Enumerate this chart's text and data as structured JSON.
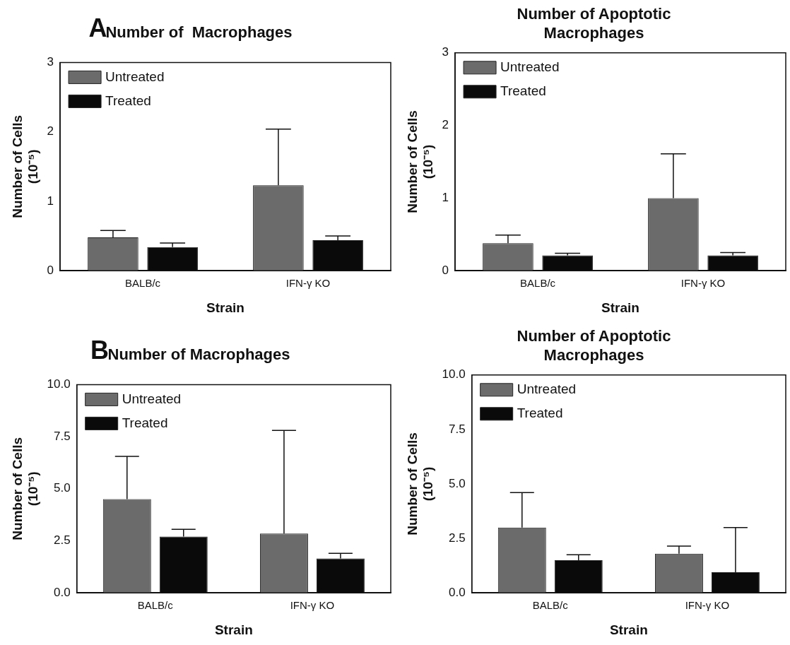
{
  "chart_data": [
    {
      "type": "bar",
      "title": "Number of  Macrophages",
      "annotations": [
        "A"
      ],
      "xlabel": "Strain",
      "ylabel": "Number of Cells (10⁻⁵)",
      "categories": [
        "BALB/c",
        "IFN-γ KO"
      ],
      "ylim": [
        0,
        3
      ],
      "yticks": [
        0,
        1,
        2,
        3
      ],
      "legend": "top left",
      "series": [
        {
          "name": "Untreated",
          "color": "#6b6b6b",
          "values": [
            0.48,
            1.23
          ],
          "errors": [
            [
              0.48,
              0.58
            ],
            [
              1.23,
              2.04
            ]
          ]
        },
        {
          "name": "Treated",
          "color": "#0a0a0a",
          "values": [
            0.34,
            0.44
          ],
          "errors": [
            [
              0.34,
              0.4
            ],
            [
              0.44,
              0.5
            ]
          ]
        }
      ]
    },
    {
      "type": "bar",
      "title": "Number of Apoptotic Macrophages",
      "xlabel": "Strain",
      "ylabel": "Number of Cells (10⁻⁵)",
      "categories": [
        "BALB/c",
        "IFN-γ KO"
      ],
      "ylim": [
        0,
        3
      ],
      "yticks": [
        0,
        1,
        2,
        3
      ],
      "legend": "top left",
      "series": [
        {
          "name": "Untreated",
          "color": "#6b6b6b",
          "values": [
            0.38,
            1.0
          ],
          "errors": [
            [
              0.38,
              0.49
            ],
            [
              1.0,
              1.61
            ]
          ]
        },
        {
          "name": "Treated",
          "color": "#0a0a0a",
          "values": [
            0.21,
            0.21
          ],
          "errors": [
            [
              0.21,
              0.24
            ],
            [
              0.21,
              0.25
            ]
          ]
        }
      ]
    },
    {
      "type": "bar",
      "title": "Number of Macrophages",
      "annotations": [
        "B"
      ],
      "xlabel": "Strain",
      "ylabel": "Number of Cells (10⁻⁵)",
      "categories": [
        "BALB/c",
        "IFN-γ KO"
      ],
      "ylim": [
        0,
        10
      ],
      "yticks": [
        {
          "value": 0,
          "label": "0.0"
        },
        2.5,
        {
          "value": 5,
          "label": "5.0"
        },
        7.5,
        {
          "value": 10,
          "label": "10.0"
        }
      ],
      "legend": "top left",
      "series": [
        {
          "name": "Untreated",
          "color": "#6b6b6b",
          "values": [
            4.5,
            2.85
          ],
          "errors": [
            [
              4.5,
              6.55
            ],
            [
              2.85,
              7.8
            ]
          ]
        },
        {
          "name": "Treated",
          "color": "#0a0a0a",
          "values": [
            2.7,
            1.65
          ],
          "errors": [
            [
              2.7,
              3.05
            ],
            [
              1.65,
              1.9
            ]
          ]
        }
      ]
    },
    {
      "type": "bar",
      "title": "Number of Apoptotic Macrophages",
      "xlabel": "Strain",
      "ylabel": "Number of Cells (10⁻⁵)",
      "categories": [
        "BALB/c",
        "IFN-γ KO"
      ],
      "ylim": [
        0,
        10
      ],
      "yticks": [
        {
          "value": 0,
          "label": "0.0"
        },
        2.5,
        {
          "value": 5,
          "label": "5.0"
        },
        7.5,
        {
          "value": 10,
          "label": "10.0"
        }
      ],
      "legend": "top left",
      "series": [
        {
          "name": "Untreated",
          "color": "#6b6b6b",
          "values": [
            3.0,
            1.8
          ],
          "errors": [
            [
              3.0,
              4.6
            ],
            [
              1.8,
              2.15
            ]
          ]
        },
        {
          "name": "Treated",
          "color": "#0a0a0a",
          "values": [
            1.5,
            0.95
          ],
          "errors": [
            [
              1.5,
              1.75
            ],
            [
              0.95,
              3.0
            ]
          ]
        }
      ]
    }
  ]
}
